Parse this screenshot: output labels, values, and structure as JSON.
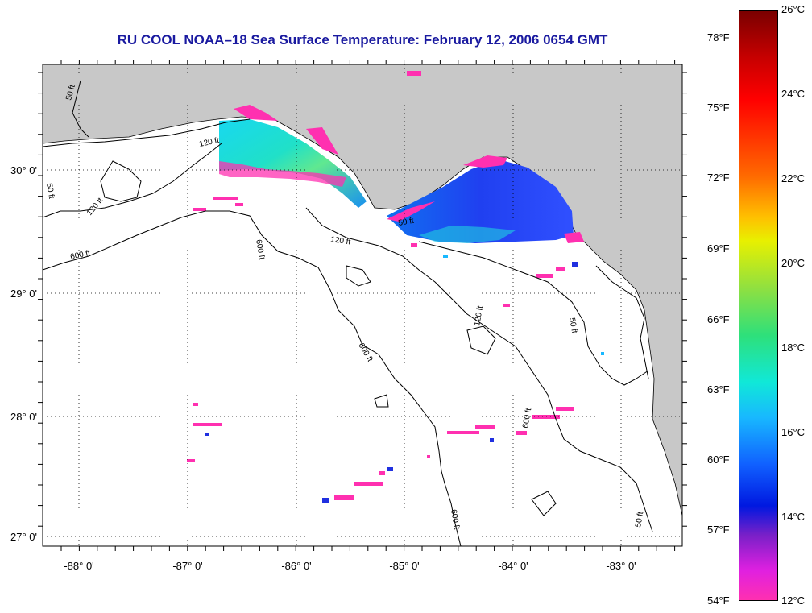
{
  "title": "RU COOL  NOAA–18  Sea Surface Temperature:  February 12, 2006 0654 GMT",
  "map": {
    "lon_labels": [
      "-88° 0'",
      "-87° 0'",
      "-86° 0'",
      "-85° 0'",
      "-84° 0'",
      "-83° 0'"
    ],
    "lat_labels": [
      "30° 0'",
      "29° 0'",
      "28° 0'",
      "27° 0'"
    ],
    "contour_labels": [
      "50 ft",
      "120 ft",
      "600 ft",
      "50 ft",
      "120 ft",
      "600 ft",
      "600 ft",
      "120 ft",
      "50 ft",
      "600 ft",
      "120 ft",
      "50 ft",
      "600 ft",
      "50 ft"
    ],
    "colors": {
      "land": "#c8c8c8",
      "water": "#ffffff",
      "contour": "#000000",
      "grid": "#000000"
    }
  },
  "colorbar": {
    "fahrenheit": [
      "78°F",
      "75°F",
      "72°F",
      "69°F",
      "66°F",
      "63°F",
      "60°F",
      "57°F",
      "54°F"
    ],
    "celsius": [
      "26°C",
      "24°C",
      "22°C",
      "20°C",
      "18°C",
      "16°C",
      "14°C",
      "12°C"
    ]
  }
}
